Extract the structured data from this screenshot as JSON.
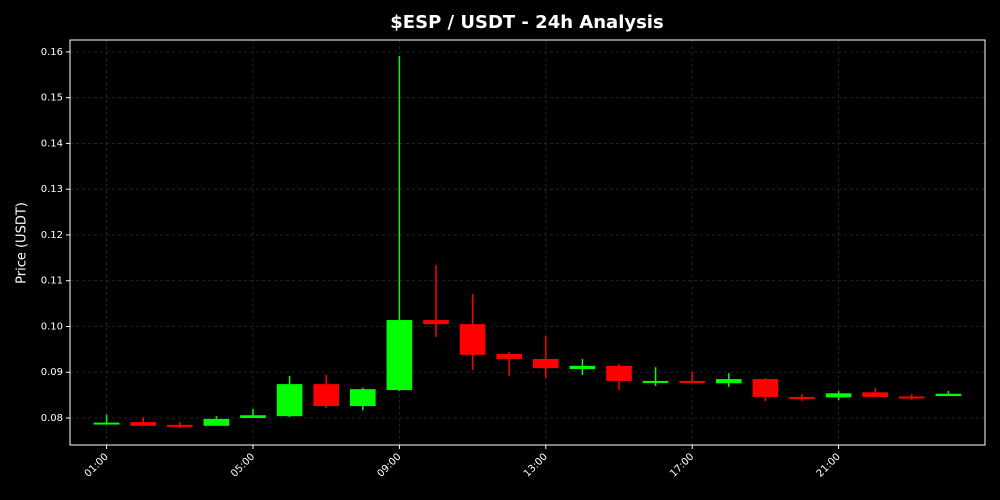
{
  "chart_data": {
    "type": "candlestick",
    "title": "$ESP / USDT - 24h Analysis",
    "y_label": "Price (USDT)",
    "up_color": "#00ff00",
    "down_color": "#ff0000",
    "grid": true,
    "x": [
      1,
      2,
      3,
      4,
      5,
      6,
      7,
      8,
      9,
      10,
      11,
      12,
      13,
      14,
      15,
      16,
      17,
      18,
      19,
      20,
      21,
      22,
      23,
      24
    ],
    "open": [
      0.0789,
      0.0791,
      0.0785,
      0.0783,
      0.08,
      0.0804,
      0.0874,
      0.0826,
      0.0861,
      0.1014,
      0.1005,
      0.094,
      0.0929,
      0.0907,
      0.0914,
      0.088,
      0.0881,
      0.0876,
      0.0885,
      0.0846,
      0.0845,
      0.0856,
      0.0847,
      0.0848
    ],
    "high": [
      0.0807,
      0.0802,
      0.0791,
      0.0804,
      0.082,
      0.0892,
      0.0894,
      0.0866,
      0.1591,
      0.1134,
      0.1071,
      0.0944,
      0.0979,
      0.0929,
      0.0918,
      0.0911,
      0.0901,
      0.0898,
      0.0887,
      0.0852,
      0.0859,
      0.0866,
      0.0852,
      0.0859
    ],
    "low": [
      0.0789,
      0.0783,
      0.0778,
      0.0783,
      0.08,
      0.0802,
      0.0822,
      0.0817,
      0.0859,
      0.0977,
      0.0905,
      0.0892,
      0.0887,
      0.0894,
      0.0861,
      0.087,
      0.0877,
      0.0868,
      0.0837,
      0.0837,
      0.0839,
      0.0846,
      0.0839,
      0.0848
    ],
    "close": [
      0.079,
      0.0783,
      0.0784,
      0.0798,
      0.0806,
      0.0874,
      0.0826,
      0.0863,
      0.1014,
      0.1005,
      0.0938,
      0.0929,
      0.0909,
      0.0914,
      0.0881,
      0.0881,
      0.088,
      0.0885,
      0.0846,
      0.0845,
      0.0854,
      0.0846,
      0.0846,
      0.0853
    ],
    "xlim": [
      0,
      25
    ],
    "xticks": [
      {
        "value": 1,
        "label": "01:00"
      },
      {
        "value": 5,
        "label": "05:00"
      },
      {
        "value": 9,
        "label": "09:00"
      },
      {
        "value": 13,
        "label": "13:00"
      },
      {
        "value": 17,
        "label": "17:00"
      },
      {
        "value": 21,
        "label": "21:00"
      }
    ],
    "ylim": [
      0.0741,
      0.1626
    ],
    "yticks": [
      0.08,
      0.09,
      {
        "value": 0.1,
        "label": "0.10"
      },
      0.11,
      0.12,
      0.13,
      0.14,
      0.15,
      0.16
    ]
  }
}
